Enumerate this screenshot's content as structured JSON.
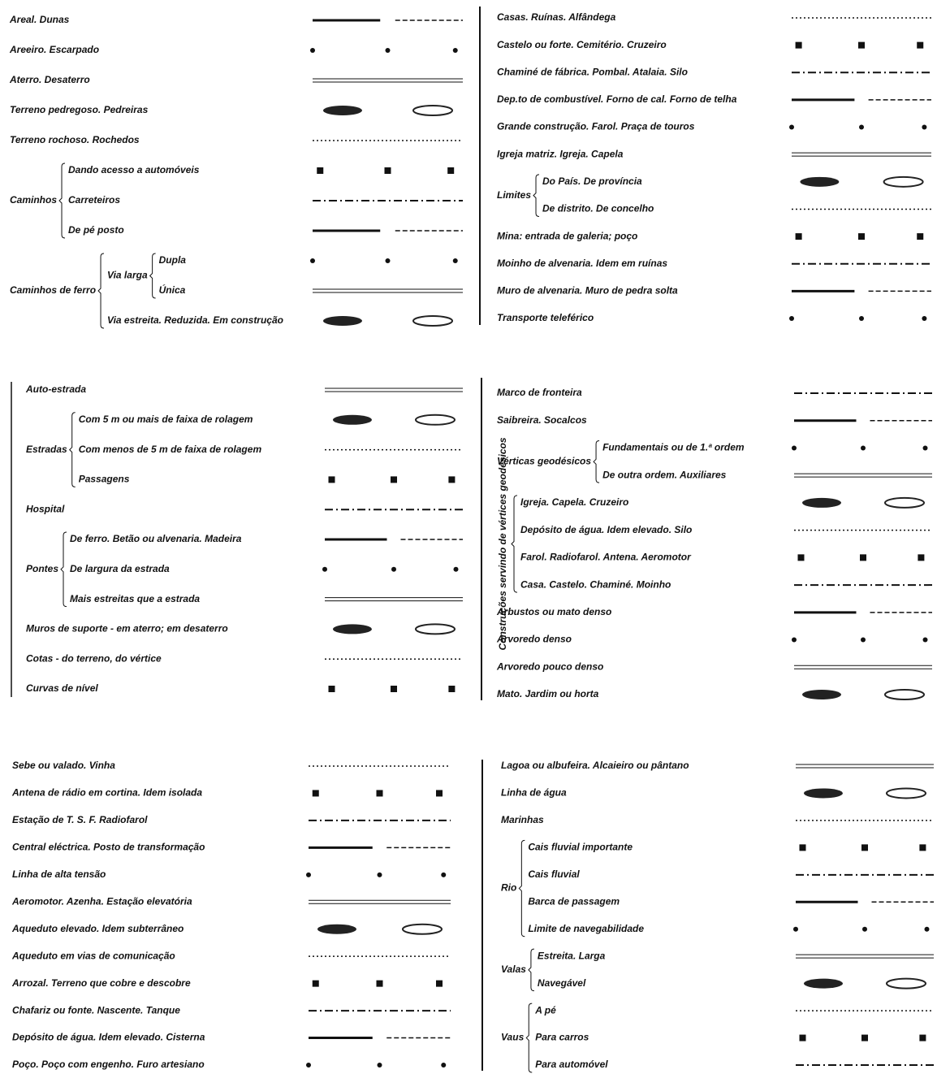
{
  "legend": {
    "top_left": {
      "items": [
        "Areal. Dunas",
        "Areeiro. Escarpado",
        "Aterro. Desaterro",
        "Terreno pedregoso. Pedreiras",
        "Terreno rochoso. Rochedos",
        {
          "group": "Caminhos",
          "items": [
            "Dando acesso a automóveis",
            "Carreteiros",
            "De pé posto"
          ]
        },
        {
          "group": "Caminhos de ferro",
          "items": [
            {
              "group": "Via larga",
              "items": [
                "Dupla",
                "Única"
              ]
            },
            "Via estreita. Reduzida. Em construção"
          ]
        }
      ]
    },
    "top_right": {
      "items": [
        "Casas. Ruínas. Alfândega",
        "Castelo ou forte. Cemitério. Cruzeiro",
        "Chaminé de fábrica. Pombal. Atalaia. Silo",
        "Dep.to de combustível. Forno de cal. Forno de telha",
        "Grande construção. Farol. Praça de touros",
        "Igreja matriz. Igreja. Capela",
        {
          "group": "Limites",
          "items": [
            "Do País. De província",
            "De distrito. De concelho"
          ]
        },
        "Mina: entrada de galeria; poço",
        "Moinho de alvenaria. Idem em ruínas",
        "Muro de alvenaria. Muro de pedra solta",
        "Transporte teleférico"
      ]
    },
    "mid_left": {
      "items": [
        "Auto-estrada",
        {
          "group": "Estradas",
          "items": [
            "Com 5 m ou mais de faixa de rolagem",
            "Com menos de 5 m de faixa de rolagem",
            "Passagens"
          ]
        },
        "Hospital",
        {
          "group": "Pontes",
          "items": [
            "De ferro. Betão ou alvenaria. Madeira",
            "De largura da estrada",
            "Mais estreitas que a estrada"
          ]
        },
        "Muros de suporte - em aterro; em desaterro",
        "Cotas - do terreno, do vértice",
        "Curvas de nível"
      ]
    },
    "mid_right": {
      "items": [
        "Marco de fronteira",
        "Saibreira. Socalcos",
        {
          "group": "Vérticas geodésicos",
          "items": [
            "Fundamentais ou de 1.ª ordem",
            "De outra ordem. Auxiliares"
          ]
        },
        {
          "group": "Construções servindo de vértices geodésicos",
          "items": [
            "Igreja. Capela. Cruzeiro",
            "Depósito de água. Idem elevado. Silo",
            "Farol. Radiofarol. Antena. Aeromotor",
            "Casa. Castelo. Chaminé. Moinho"
          ]
        },
        "Arbustos ou mato denso",
        "Arvoredo denso",
        "Arvoredo pouco denso",
        "Mato. Jardim ou horta"
      ]
    },
    "bottom_left": {
      "items": [
        "Sebe ou valado. Vinha",
        "Antena de rádio em cortina. Idem isolada",
        "Estação de T. S. F. Radiofarol",
        "Central eléctrica. Posto de transformação",
        "Linha de alta tensão",
        "Aeromotor. Azenha. Estação elevatória",
        "Aqueduto elevado. Idem subterrâneo",
        "Aqueduto em vias de comunicação",
        "Arrozal. Terreno que cobre e descobre",
        "Chafariz ou fonte. Nascente. Tanque",
        "Depósito de água. Idem elevado. Cisterna",
        "Poço. Poço com engenho. Furo artesiano"
      ]
    },
    "bottom_right": {
      "items": [
        "Lagoa ou albufeira. Alcaieiro ou pântano",
        "Linha de água",
        "Marinhas",
        {
          "group": "Rio",
          "items": [
            "Cais fluvial importante",
            "Cais fluvial",
            "Barca de passagem",
            "Limite de navegabilidade"
          ]
        },
        {
          "group": "Valas",
          "items": [
            "Estreita. Larga",
            "Navegável"
          ]
        },
        {
          "group": "Vaus",
          "items": [
            "A pé",
            "Para carros",
            "Para automóvel"
          ]
        }
      ]
    }
  }
}
